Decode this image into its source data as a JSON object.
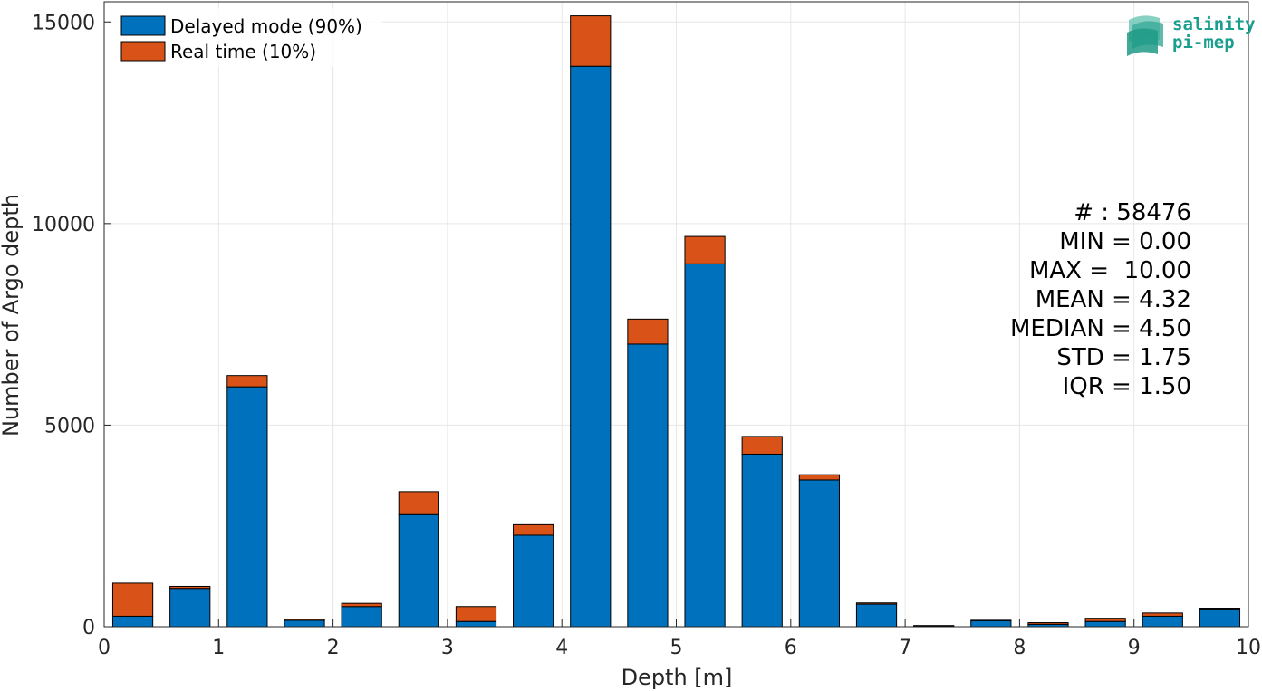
{
  "chart_data": {
    "type": "bar",
    "stacked": true,
    "xlabel": "Depth [m]",
    "ylabel": "Number of Argo depth",
    "xlim": [
      0,
      10
    ],
    "ylim": [
      0,
      15500
    ],
    "xticks": [
      0,
      1,
      2,
      3,
      4,
      5,
      6,
      7,
      8,
      9,
      10
    ],
    "yticks": [
      0,
      5000,
      10000,
      15000
    ],
    "grid": true,
    "legend_position": "top-left",
    "bin_centers": [
      0.25,
      0.75,
      1.25,
      1.75,
      2.25,
      2.75,
      3.25,
      3.75,
      4.25,
      4.75,
      5.25,
      5.75,
      6.25,
      6.75,
      7.25,
      7.75,
      8.25,
      8.75,
      9.25,
      9.75
    ],
    "bar_width": 0.35,
    "series": [
      {
        "name": "Delayed mode (90%)",
        "color": "#0072BD",
        "values": [
          260,
          950,
          5950,
          160,
          500,
          2780,
          130,
          2270,
          13900,
          7010,
          9000,
          4280,
          3640,
          560,
          20,
          150,
          60,
          130,
          260,
          420
        ]
      },
      {
        "name": "Real time (10%)",
        "color": "#D95319",
        "values": [
          820,
          50,
          280,
          30,
          80,
          570,
          370,
          260,
          1250,
          620,
          680,
          440,
          130,
          30,
          10,
          10,
          40,
          80,
          80,
          40
        ]
      }
    ]
  },
  "stats": {
    "count": "# : 58476",
    "min": "MIN = 0.00",
    "max": "MAX =  10.00",
    "mean": "MEAN = 4.32",
    "median": "MEDIAN = 4.50",
    "std": "STD = 1.75",
    "iqr": "IQR = 1.50"
  },
  "logo": {
    "line1": "salinity",
    "line2": "pi-mep",
    "color": "#1a9e8e"
  }
}
